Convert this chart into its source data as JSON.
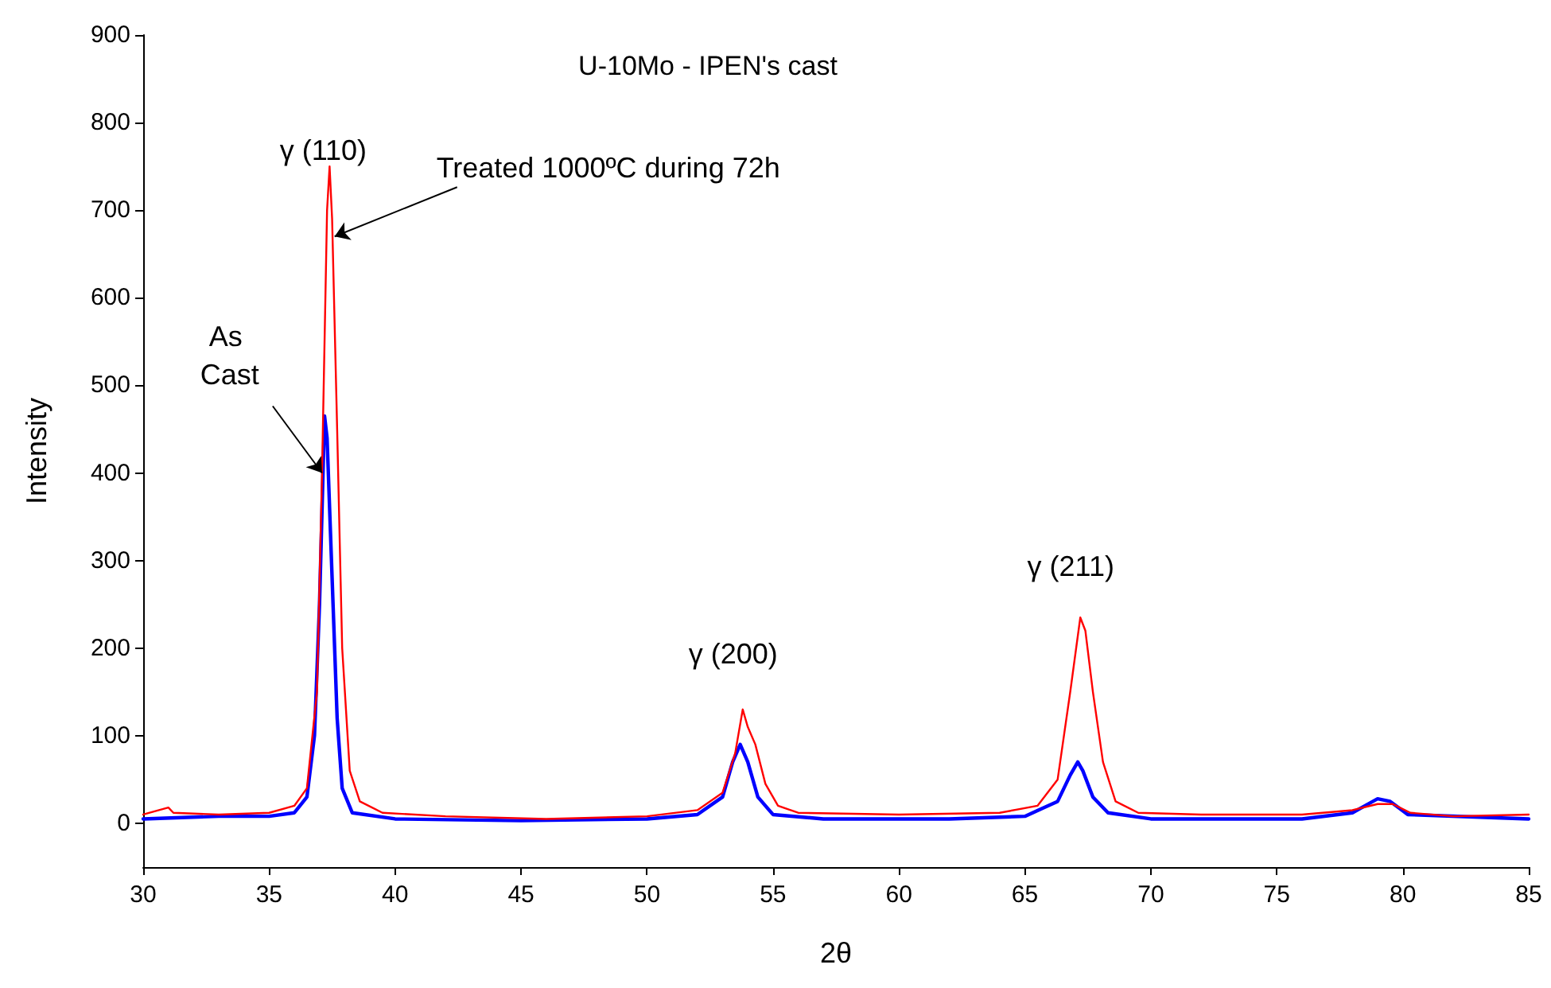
{
  "chart_data": {
    "type": "line",
    "title": "U-10Mo - IPEN's cast",
    "xlabel": "2θ",
    "ylabel": "Intensity",
    "xlim": [
      30,
      85
    ],
    "xticks": [
      30,
      35,
      40,
      45,
      50,
      55,
      60,
      65,
      70,
      75,
      80,
      85
    ],
    "ylim": [
      -50,
      900
    ],
    "yticks": [
      0,
      100,
      200,
      300,
      400,
      500,
      600,
      700,
      800,
      900
    ],
    "grid": false,
    "marker": "none",
    "line_style": "solid",
    "series": [
      {
        "color": "#0000ff",
        "x": [
          30,
          33,
          35,
          36,
          36.5,
          36.8,
          37,
          37.2,
          37.3,
          37.5,
          37.7,
          37.9,
          38.3,
          40,
          45,
          50,
          52,
          53,
          53.4,
          53.7,
          54,
          54.4,
          55,
          57,
          62,
          65,
          66.3,
          66.8,
          67.1,
          67.3,
          67.7,
          68.3,
          70,
          76,
          78,
          79,
          79.5,
          80.2,
          85
        ],
        "values": [
          5,
          8,
          8,
          12,
          30,
          100,
          250,
          465,
          440,
          280,
          120,
          40,
          12,
          5,
          3,
          5,
          10,
          30,
          70,
          90,
          70,
          30,
          10,
          5,
          5,
          8,
          25,
          55,
          70,
          60,
          30,
          12,
          5,
          5,
          12,
          28,
          25,
          10,
          5
        ]
      },
      {
        "color": "#ff0000",
        "x": [
          30,
          31,
          31.2,
          33,
          35,
          36,
          36.5,
          36.9,
          37.1,
          37.3,
          37.4,
          37.5,
          37.7,
          37.9,
          38.2,
          38.6,
          39.5,
          42,
          46,
          50,
          52,
          53,
          53.5,
          53.8,
          54,
          54.3,
          54.7,
          55.2,
          56,
          60,
          64,
          65.5,
          66.3,
          66.8,
          67.2,
          67.4,
          67.7,
          68.1,
          68.6,
          69.5,
          72,
          76,
          78,
          79,
          79.6,
          80.3,
          82,
          85
        ],
        "values": [
          10,
          18,
          12,
          10,
          12,
          20,
          40,
          150,
          400,
          700,
          750,
          690,
          450,
          200,
          60,
          25,
          12,
          8,
          5,
          8,
          15,
          35,
          80,
          130,
          110,
          90,
          45,
          20,
          12,
          10,
          12,
          20,
          50,
          150,
          235,
          220,
          150,
          70,
          25,
          12,
          10,
          10,
          15,
          22,
          22,
          12,
          8,
          10
        ]
      }
    ],
    "annotations": [
      {
        "text": "γ (110)",
        "x": 37.4,
        "y": 750
      },
      {
        "text": "γ (200)",
        "x": 53.8,
        "y": 130
      },
      {
        "text": "γ (211)",
        "x": 67.2,
        "y": 235
      },
      {
        "text": "Treated 1000ºC during 72h",
        "x": 37.6,
        "y": 670
      },
      {
        "text": "As Cast",
        "x": 37.1,
        "y": 400
      }
    ]
  }
}
